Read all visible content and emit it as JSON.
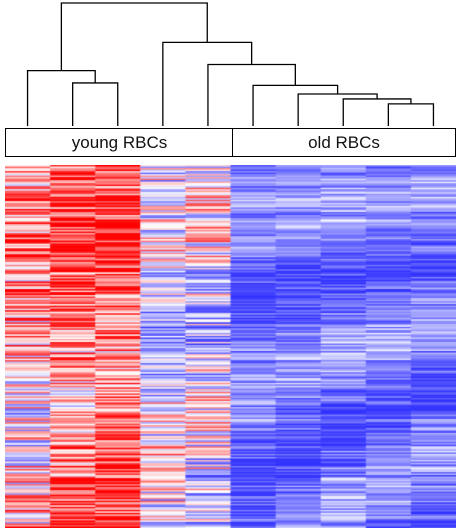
{
  "chart_data": {
    "type": "heatmap",
    "title": "",
    "groups": [
      {
        "label": "young RBCs",
        "columns": 5
      },
      {
        "label": "old RBCs",
        "columns": 5
      }
    ],
    "columns": 10,
    "rows": 240,
    "color_scale": {
      "low": "#3333ff",
      "mid": "#ffffff",
      "high": "#ff0000"
    },
    "column_profiles": [
      {
        "mean": 0.25,
        "spread": 0.75
      },
      {
        "mean": 0.55,
        "spread": 0.6
      },
      {
        "mean": 0.6,
        "spread": 0.55
      },
      {
        "mean": -0.2,
        "spread": 0.6
      },
      {
        "mean": -0.15,
        "spread": 0.65
      },
      {
        "mean": -0.72,
        "spread": 0.25
      },
      {
        "mean": -0.72,
        "spread": 0.25
      },
      {
        "mean": -0.65,
        "spread": 0.28
      },
      {
        "mean": -0.7,
        "spread": 0.25
      },
      {
        "mean": -0.68,
        "spread": 0.27
      }
    ],
    "dendrogram": {
      "leaf_order": [
        1,
        2,
        3,
        4,
        5,
        6,
        7,
        8,
        9,
        10
      ],
      "merges": [
        {
          "left": 2,
          "right": 3,
          "height": 0.35
        },
        {
          "left": 1,
          "right": -1,
          "height": 0.45
        },
        {
          "left": 9,
          "right": 10,
          "height": 0.18
        },
        {
          "left": 8,
          "right": -3,
          "height": 0.22
        },
        {
          "left": 7,
          "right": -4,
          "height": 0.26
        },
        {
          "left": 6,
          "right": -5,
          "height": 0.33
        },
        {
          "left": 5,
          "right": -6,
          "height": 0.5
        },
        {
          "left": 4,
          "right": -7,
          "height": 0.68
        },
        {
          "left": -2,
          "right": -8,
          "height": 1.0
        }
      ]
    }
  }
}
